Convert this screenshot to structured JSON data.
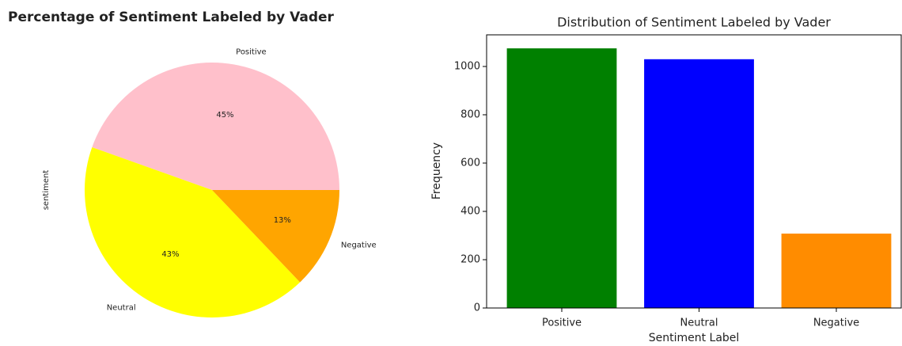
{
  "chart_data": [
    {
      "type": "pie",
      "title": "Percentage of Sentiment Labeled by Vader",
      "ylabel": "sentiment",
      "categories": [
        "Positive",
        "Neutral",
        "Negative"
      ],
      "values": [
        45,
        43,
        13
      ],
      "value_labels": [
        "45%",
        "43%",
        "13%"
      ],
      "colors": [
        "#ffc0cb",
        "#ffff00",
        "#ffa500"
      ]
    },
    {
      "type": "bar",
      "title": "Distribution of Sentiment Labeled by Vader",
      "xlabel": "Sentiment Label",
      "ylabel": "Frequency",
      "categories": [
        "Positive",
        "Neutral",
        "Negative"
      ],
      "values": [
        1075,
        1030,
        308
      ],
      "colors": [
        "#008000",
        "#0000ff",
        "#ff8c00"
      ],
      "ylim": [
        0,
        1131
      ],
      "yticks": [
        0,
        200,
        400,
        600,
        800,
        1000
      ]
    }
  ]
}
